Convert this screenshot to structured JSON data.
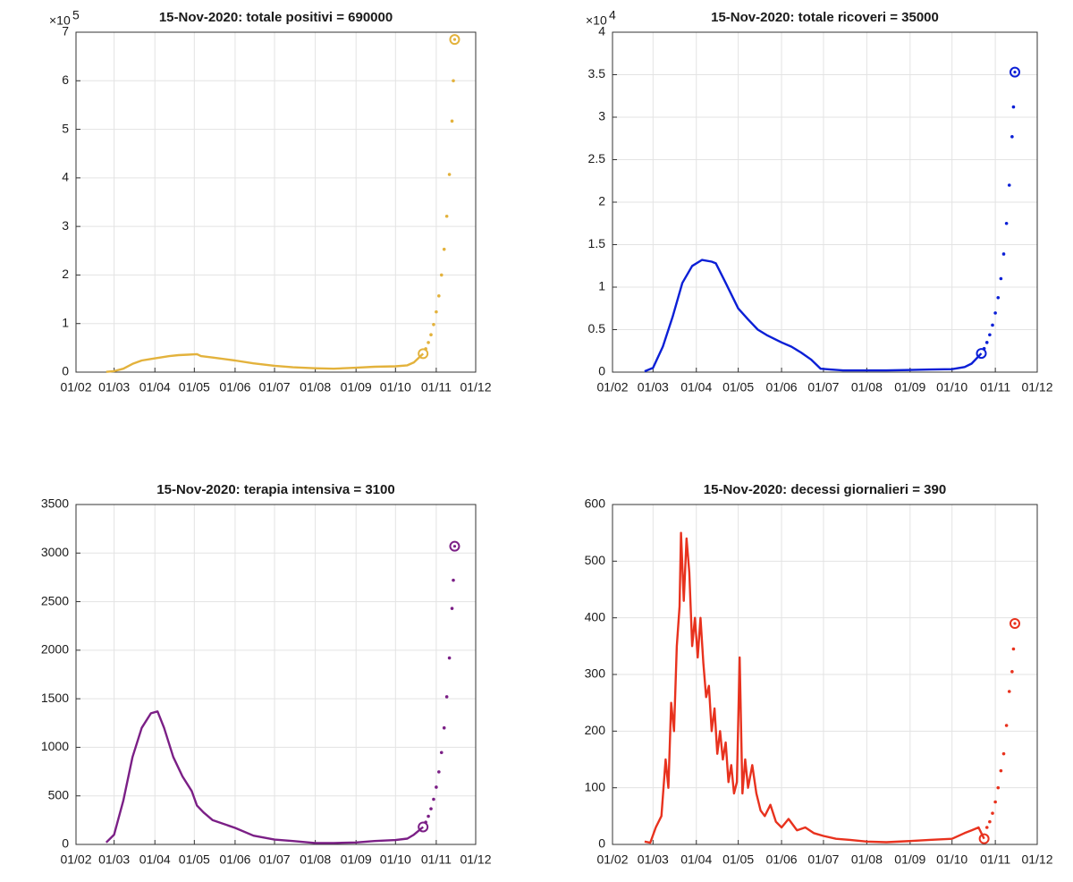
{
  "chart_data": [
    {
      "type": "line",
      "title": "15-Nov-2020: totale positivi = 690000",
      "xlim": [
        "01/02",
        "01/12"
      ],
      "xticks": [
        "01/02",
        "01/03",
        "01/04",
        "01/05",
        "01/06",
        "01/07",
        "01/08",
        "01/09",
        "01/10",
        "01/11",
        "01/12"
      ],
      "ylim": [
        0,
        700000
      ],
      "yticks": [
        0,
        {
          "value": 100000,
          "label": "1"
        },
        {
          "value": 200000,
          "label": "2"
        },
        {
          "value": 300000,
          "label": "3"
        },
        {
          "value": 400000,
          "label": "4"
        },
        {
          "value": 500000,
          "label": "5"
        },
        {
          "value": 600000,
          "label": "6"
        },
        {
          "value": 700000,
          "label": "7"
        }
      ],
      "y_exponent": {
        "base": "×10",
        "power": "5"
      },
      "grid": true,
      "series": [
        {
          "color": "#e3b23c",
          "style": "line",
          "x": [
            "24/02",
            "01/03",
            "08/03",
            "15/03",
            "22/03",
            "29/03",
            "05/04",
            "12/04",
            "19/04",
            "26/04",
            "03/05",
            "06/05",
            "15/05",
            "01/06",
            "15/06",
            "01/07",
            "15/07",
            "01/08",
            "15/08",
            "01/09",
            "15/09",
            "01/10",
            "10/10",
            "15/10",
            "22/10"
          ],
          "values": [
            500,
            2000,
            7000,
            17000,
            24000,
            27000,
            30000,
            33000,
            35000,
            36000,
            37000,
            33000,
            30000,
            24000,
            18000,
            13000,
            10000,
            8000,
            7000,
            9000,
            11000,
            12000,
            14000,
            20000,
            38000
          ]
        },
        {
          "color": "#e3b23c",
          "style": "dots",
          "x": [
            "24/10",
            "26/10",
            "28/10",
            "30/10",
            "01/11",
            "03/11",
            "05/11",
            "07/11",
            "09/11",
            "11/11",
            "13/11",
            "14/11"
          ],
          "values": [
            48000,
            61000,
            77000,
            98000,
            124000,
            157000,
            200000,
            253000,
            321000,
            407000,
            517000,
            600000
          ]
        },
        {
          "color": "#e3b23c",
          "style": "circle",
          "x": [
            "22/10",
            "15/11"
          ],
          "values": [
            38000,
            685000
          ]
        }
      ]
    },
    {
      "type": "line",
      "title": "15-Nov-2020: totale ricoveri = 35000",
      "xlim": [
        "01/02",
        "01/12"
      ],
      "xticks": [
        "01/02",
        "01/03",
        "01/04",
        "01/05",
        "01/06",
        "01/07",
        "01/08",
        "01/09",
        "01/10",
        "01/11",
        "01/12"
      ],
      "ylim": [
        0,
        40000
      ],
      "yticks": [
        0,
        {
          "value": 5000,
          "label": "0.5"
        },
        {
          "value": 10000,
          "label": "1"
        },
        {
          "value": 15000,
          "label": "1.5"
        },
        {
          "value": 20000,
          "label": "2"
        },
        {
          "value": 25000,
          "label": "2.5"
        },
        {
          "value": 30000,
          "label": "3"
        },
        {
          "value": 35000,
          "label": "3.5"
        },
        {
          "value": 40000,
          "label": "4"
        }
      ],
      "y_exponent": {
        "base": "×10",
        "power": "4"
      },
      "grid": true,
      "series": [
        {
          "color": "#0b1fd6",
          "style": "line",
          "x": [
            "24/02",
            "01/03",
            "08/03",
            "15/03",
            "22/03",
            "29/03",
            "05/04",
            "12/04",
            "15/04",
            "22/04",
            "01/05",
            "08/05",
            "15/05",
            "22/05",
            "01/06",
            "08/06",
            "15/06",
            "22/06",
            "29/06",
            "06/07",
            "15/07",
            "01/08",
            "15/08",
            "01/09",
            "15/09",
            "01/10",
            "10/10",
            "15/10",
            "22/10"
          ],
          "values": [
            100,
            500,
            3000,
            6500,
            10500,
            12500,
            13200,
            13000,
            12800,
            10500,
            7500,
            6200,
            5000,
            4300,
            3500,
            3000,
            2300,
            1500,
            400,
            300,
            200,
            200,
            200,
            250,
            300,
            350,
            600,
            1000,
            2200
          ]
        },
        {
          "color": "#0b1fd6",
          "style": "dots",
          "x": [
            "24/10",
            "26/10",
            "28/10",
            "30/10",
            "01/11",
            "03/11",
            "05/11",
            "07/11",
            "09/11",
            "11/11",
            "13/11",
            "14/11"
          ],
          "values": [
            2770,
            3490,
            4390,
            5530,
            6960,
            8760,
            11000,
            13900,
            17500,
            22000,
            27700,
            31200
          ]
        },
        {
          "color": "#0b1fd6",
          "style": "circle",
          "x": [
            "22/10",
            "15/11"
          ],
          "values": [
            2200,
            35300
          ]
        }
      ]
    },
    {
      "type": "line",
      "title": "15-Nov-2020: terapia intensiva = 3100",
      "xlim": [
        "01/02",
        "01/12"
      ],
      "xticks": [
        "01/02",
        "01/03",
        "01/04",
        "01/05",
        "01/06",
        "01/07",
        "01/08",
        "01/09",
        "01/10",
        "01/11",
        "01/12"
      ],
      "ylim": [
        0,
        3500
      ],
      "yticks": [
        0,
        500,
        1000,
        1500,
        2000,
        2500,
        3000,
        3500
      ],
      "grid": true,
      "series": [
        {
          "color": "#7b1f86",
          "style": "line",
          "x": [
            "24/02",
            "01/03",
            "08/03",
            "15/03",
            "22/03",
            "29/03",
            "03/04",
            "08/04",
            "15/04",
            "22/04",
            "29/04",
            "03/05",
            "08/05",
            "15/05",
            "01/06",
            "15/06",
            "01/07",
            "15/07",
            "01/08",
            "15/08",
            "01/09",
            "15/09",
            "01/10",
            "10/10",
            "15/10",
            "22/10"
          ],
          "values": [
            20,
            100,
            450,
            900,
            1200,
            1350,
            1370,
            1200,
            900,
            700,
            550,
            400,
            330,
            250,
            170,
            90,
            50,
            35,
            15,
            15,
            20,
            35,
            45,
            60,
            100,
            180
          ]
        },
        {
          "color": "#7b1f86",
          "style": "dots",
          "x": [
            "24/10",
            "26/10",
            "28/10",
            "30/10",
            "01/11",
            "03/11",
            "05/11",
            "07/11",
            "09/11",
            "11/11",
            "13/11",
            "14/11"
          ],
          "values": [
            229,
            290,
            367,
            465,
            590,
            747,
            946,
            1200,
            1520,
            1920,
            2430,
            2720
          ]
        },
        {
          "color": "#7b1f86",
          "style": "circle",
          "x": [
            "22/10",
            "15/11"
          ],
          "values": [
            180,
            3070
          ]
        }
      ]
    },
    {
      "type": "line",
      "title": "15-Nov-2020: decessi giornalieri = 390",
      "xlim": [
        "01/02",
        "01/12"
      ],
      "xticks": [
        "01/02",
        "01/03",
        "01/04",
        "01/05",
        "01/06",
        "01/07",
        "01/08",
        "01/09",
        "01/10",
        "01/11",
        "01/12"
      ],
      "ylim": [
        0,
        600
      ],
      "yticks": [
        0,
        100,
        200,
        300,
        400,
        500,
        600
      ],
      "grid": true,
      "series": [
        {
          "color": "#e8321e",
          "style": "line",
          "x": [
            "24/02",
            "28/02",
            "03/03",
            "07/03",
            "10/03",
            "12/03",
            "14/03",
            "16/03",
            "18/03",
            "20/03",
            "21/03",
            "23/03",
            "25/03",
            "27/03",
            "29/03",
            "31/03",
            "02/04",
            "04/04",
            "06/04",
            "08/04",
            "10/04",
            "12/04",
            "14/04",
            "16/04",
            "18/04",
            "20/04",
            "22/04",
            "24/04",
            "26/04",
            "28/04",
            "30/04",
            "02/05",
            "04/05",
            "06/05",
            "08/05",
            "11/05",
            "14/05",
            "17/05",
            "20/05",
            "24/05",
            "28/05",
            "01/06",
            "06/06",
            "12/06",
            "18/06",
            "24/06",
            "01/07",
            "10/07",
            "20/07",
            "01/08",
            "15/08",
            "01/09",
            "15/09",
            "01/10",
            "10/10",
            "15/10",
            "20/10",
            "24/10"
          ],
          "values": [
            5,
            3,
            30,
            50,
            150,
            100,
            250,
            200,
            350,
            420,
            550,
            430,
            540,
            480,
            350,
            400,
            330,
            400,
            320,
            260,
            280,
            200,
            240,
            160,
            200,
            150,
            180,
            110,
            140,
            90,
            110,
            330,
            90,
            150,
            100,
            140,
            90,
            60,
            50,
            70,
            40,
            30,
            45,
            25,
            30,
            20,
            15,
            10,
            8,
            5,
            4,
            6,
            8,
            10,
            20,
            25,
            30,
            10
          ]
        },
        {
          "color": "#e8321e",
          "style": "dots",
          "x": [
            "26/10",
            "28/10",
            "30/10",
            "01/11",
            "03/11",
            "05/11",
            "07/11",
            "09/11",
            "11/11",
            "13/11",
            "14/11"
          ],
          "values": [
            30,
            40,
            55,
            75,
            100,
            130,
            160,
            210,
            270,
            305,
            345
          ]
        },
        {
          "color": "#e8321e",
          "style": "circle",
          "x": [
            "24/10",
            "15/11"
          ],
          "values": [
            10,
            390
          ]
        }
      ]
    }
  ]
}
